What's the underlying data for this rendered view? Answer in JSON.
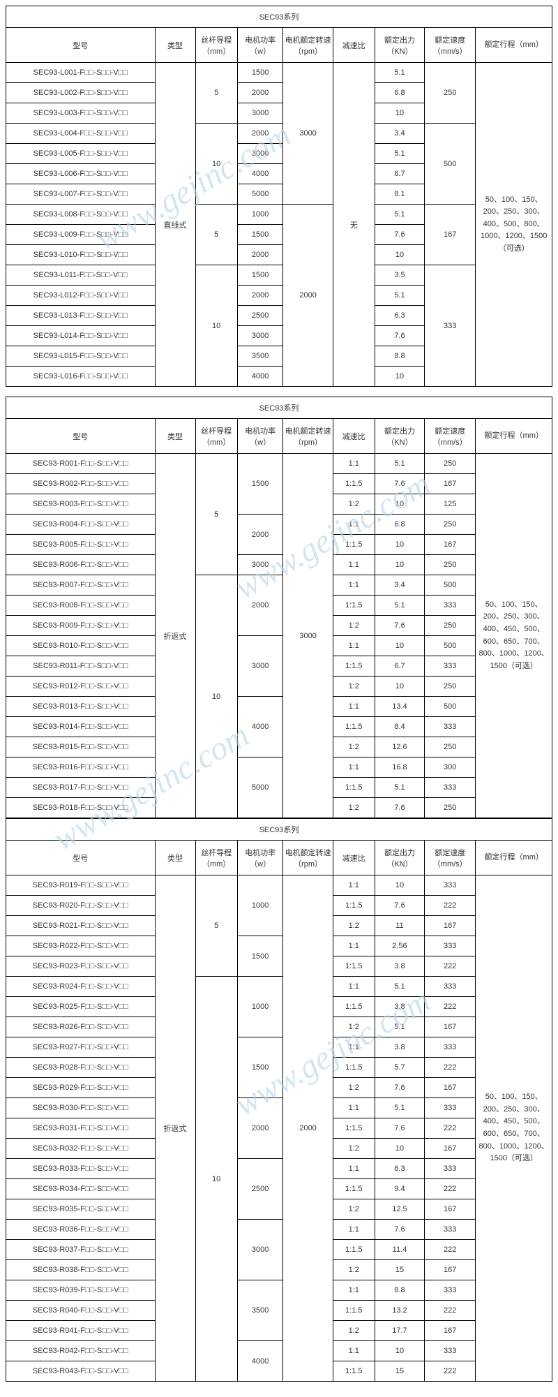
{
  "series_title": "SEC93系列",
  "headers": {
    "model": "型号",
    "type": "类型",
    "lead": "丝杆导程（mm）",
    "power": "电机功率（w）",
    "rpm": "电机额定转速（rpm）",
    "ratio": "减速比",
    "force": "额定出力（KN）",
    "speed": "额定速度（mm/s）",
    "stroke": "额定行程（mm）"
  },
  "t1": {
    "type": "直线式",
    "rpm_a": "3000",
    "rpm_b": "2000",
    "ratio": "无",
    "stroke": "50、100、150、200、250、300、400、500、800、1000、1200、1500（可选）",
    "rows": [
      {
        "m": "SEC93‐L001-F□□-S□□-V□□",
        "p": "1500",
        "f": "5.1"
      },
      {
        "m": "SEC93‐L002-F□□-S□□-V□□",
        "p": "2000",
        "f": "6.8"
      },
      {
        "m": "SEC93‐L003-F□□-S□□-V□□",
        "p": "3000",
        "f": "10"
      },
      {
        "m": "SEC93‐L004-F□□-S□□-V□□",
        "p": "2000",
        "f": "3.4"
      },
      {
        "m": "SEC93‐L005-F□□-S□□-V□□",
        "p": "3000",
        "f": "5.1"
      },
      {
        "m": "SEC93‐L006-F□□-S□□-V□□",
        "p": "4000",
        "f": "6.7"
      },
      {
        "m": "SEC93‐L007-F□□-S□□-V□□",
        "p": "5000",
        "f": "8.1"
      },
      {
        "m": "SEC93‐L008-F□□-S□□-V□□",
        "p": "1000",
        "f": "5.1"
      },
      {
        "m": "SEC93‐L009-F□□-S□□-V□□",
        "p": "1500",
        "f": "7.6"
      },
      {
        "m": "SEC93‐L010-F□□-S□□-V□□",
        "p": "2000",
        "f": "10"
      },
      {
        "m": "SEC93‐L011-F□□-S□□-V□□",
        "p": "1500",
        "f": "3.5"
      },
      {
        "m": "SEC93‐L012-F□□-S□□-V□□",
        "p": "2000",
        "f": "5.1"
      },
      {
        "m": "SEC93‐L013-F□□-S□□-V□□",
        "p": "2500",
        "f": "6.3"
      },
      {
        "m": "SEC93‐L014-F□□-S□□-V□□",
        "p": "3000",
        "f": "7.6"
      },
      {
        "m": "SEC93‐L015-F□□-S□□-V□□",
        "p": "3500",
        "f": "8.8"
      },
      {
        "m": "SEC93‐L016-F□□-S□□-V□□",
        "p": "4000",
        "f": "10"
      }
    ],
    "lead_a": "5",
    "lead_b": "10",
    "lead_c": "5",
    "lead_d": "10",
    "sp_a": "250",
    "sp_b": "500",
    "sp_c": "167",
    "sp_d": "333"
  },
  "t2": {
    "type": "折返式",
    "rpm": "3000",
    "stroke": "50、100、150、200、250、300、400、450、500、600、650、700、800、1000、1200、1500（可选）",
    "rows": [
      {
        "m": "SEC93‐R001-F□□-S□□-V□□",
        "r": "1:1",
        "f": "5.1",
        "s": "250"
      },
      {
        "m": "SEC93‐R002-F□□-S□□-V□□",
        "r": "1:1.5",
        "f": "7.6",
        "s": "167"
      },
      {
        "m": "SEC93‐R003-F□□-S□□-V□□",
        "r": "1:2",
        "f": "10",
        "s": "125"
      },
      {
        "m": "SEC93‐R004-F□□-S□□-V□□",
        "r": "1:1",
        "f": "6.8",
        "s": "250"
      },
      {
        "m": "SEC93‐R005-F□□-S□□-V□□",
        "r": "1:1.5",
        "f": "10",
        "s": "167"
      },
      {
        "m": "SEC93‐R006-F□□-S□□-V□□",
        "r": "1:1",
        "f": "10",
        "s": "250"
      },
      {
        "m": "SEC93‐R007-F□□-S□□-V□□",
        "r": "1:1",
        "f": "3.4",
        "s": "500"
      },
      {
        "m": "SEC93‐R008-F□□-S□□-V□□",
        "r": "1:1.5",
        "f": "5.1",
        "s": "333"
      },
      {
        "m": "SEC93‐R009-F□□-S□□-V□□",
        "r": "1:2",
        "f": "7.6",
        "s": "250"
      },
      {
        "m": "SEC93‐R010-F□□-S□□-V□□",
        "r": "1:1",
        "f": "10",
        "s": "500"
      },
      {
        "m": "SEC93‐R011-F□□-S□□-V□□",
        "r": "1:1.5",
        "f": "6.7",
        "s": "333"
      },
      {
        "m": "SEC93‐R012-F□□-S□□-V□□",
        "r": "1:2",
        "f": "10",
        "s": "250"
      },
      {
        "m": "SEC93‐R013-F□□-S□□-V□□",
        "r": "1:1",
        "f": "13.4",
        "s": "500"
      },
      {
        "m": "SEC93‐R014-F□□-S□□-V□□",
        "r": "1:1.5",
        "f": "8.4",
        "s": "333"
      },
      {
        "m": "SEC93‐R015-F□□-S□□-V□□",
        "r": "1:2",
        "f": "12.6",
        "s": "250"
      },
      {
        "m": "SEC93‐R016-F□□-S□□-V□□",
        "r": "1:1",
        "f": "16.8",
        "s": "300"
      },
      {
        "m": "SEC93‐R017-F□□-S□□-V□□",
        "r": "1:1.5",
        "f": "5.1",
        "s": "333"
      },
      {
        "m": "SEC93‐R018-F□□-S□□-V□□",
        "r": "1:2",
        "f": "7.6",
        "s": "250"
      }
    ],
    "lead_a": "5",
    "lead_b": "10",
    "p1": "1500",
    "p2": "2000",
    "p3": "3000",
    "p4": "2000",
    "p5": "3000",
    "p6": "4000",
    "p7": "5000"
  },
  "t3": {
    "type": "折返式",
    "rpm": "2000",
    "stroke": "50、100、150、200、250、300、400、450、500、600、650、700、800、1000、1200、1500（可选）",
    "rows": [
      {
        "m": "SEC93‐R019-F□□-S□□-V□□",
        "r": "1:1",
        "f": "10",
        "s": "333"
      },
      {
        "m": "SEC93‐R020-F□□-S□□-V□□",
        "r": "1:1.5",
        "f": "7.6",
        "s": "222"
      },
      {
        "m": "SEC93‐R021-F□□-S□□-V□□",
        "r": "1:2",
        "f": "11",
        "s": "167"
      },
      {
        "m": "SEC93‐R022-F□□-S□□-V□□",
        "r": "1:1",
        "f": "2.56",
        "s": "333"
      },
      {
        "m": "SEC93‐R023-F□□-S□□-V□□",
        "r": "1:1.5",
        "f": "3.8",
        "s": "222"
      },
      {
        "m": "SEC93‐R024-F□□-S□□-V□□",
        "r": "1:1",
        "f": "5.1",
        "s": "333"
      },
      {
        "m": "SEC93‐R025-F□□-S□□-V□□",
        "r": "1:1.5",
        "f": "3.8",
        "s": "222"
      },
      {
        "m": "SEC93‐R026-F□□-S□□-V□□",
        "r": "1:2",
        "f": "5.1",
        "s": "167"
      },
      {
        "m": "SEC93‐R027-F□□-S□□-V□□",
        "r": "1:1",
        "f": "3.8",
        "s": "333"
      },
      {
        "m": "SEC93‐R028-F□□-S□□-V□□",
        "r": "1:1.5",
        "f": "5.7",
        "s": "222"
      },
      {
        "m": "SEC93‐R029-F□□-S□□-V□□",
        "r": "1:2",
        "f": "7.6",
        "s": "167"
      },
      {
        "m": "SEC93‐R030-F□□-S□□-V□□",
        "r": "1:1",
        "f": "5.1",
        "s": "333"
      },
      {
        "m": "SEC93‐R031-F□□-S□□-V□□",
        "r": "1:1.5",
        "f": "7.6",
        "s": "222"
      },
      {
        "m": "SEC93‐R032-F□□-S□□-V□□",
        "r": "1:2",
        "f": "10",
        "s": "167"
      },
      {
        "m": "SEC93‐R033-F□□-S□□-V□□",
        "r": "1:1",
        "f": "6.3",
        "s": "333"
      },
      {
        "m": "SEC93‐R034-F□□-S□□-V□□",
        "r": "1:1.5",
        "f": "9.4",
        "s": "222"
      },
      {
        "m": "SEC93‐R035-F□□-S□□-V□□",
        "r": "1:2",
        "f": "12.5",
        "s": "167"
      },
      {
        "m": "SEC93‐R036-F□□-S□□-V□□",
        "r": "1:1",
        "f": "7.6",
        "s": "333"
      },
      {
        "m": "SEC93‐R037-F□□-S□□-V□□",
        "r": "1:1.5",
        "f": "11.4",
        "s": "222"
      },
      {
        "m": "SEC93‐R038-F□□-S□□-V□□",
        "r": "1:2",
        "f": "15",
        "s": "167"
      },
      {
        "m": "SEC93‐R039-F□□-S□□-V□□",
        "r": "1:1",
        "f": "8.8",
        "s": "333"
      },
      {
        "m": "SEC93‐R040-F□□-S□□-V□□",
        "r": "1:1.5",
        "f": "13.2",
        "s": "222"
      },
      {
        "m": "SEC93‐R041-F□□-S□□-V□□",
        "r": "1:2",
        "f": "17.7",
        "s": "167"
      },
      {
        "m": "SEC93‐R042-F□□-S□□-V□□",
        "r": "1:1",
        "f": "10",
        "s": "333"
      },
      {
        "m": "SEC93‐R043-F□□-S□□-V□□",
        "r": "1:1.5",
        "f": "15",
        "s": "222"
      }
    ],
    "lead_a": "5",
    "lead_b": "10",
    "p1": "1000",
    "p2": "1500",
    "p3": "1000",
    "p4": "1500",
    "p5": "2000",
    "p6": "2500",
    "p7": "3000",
    "p8": "3500",
    "p9": "4000"
  }
}
